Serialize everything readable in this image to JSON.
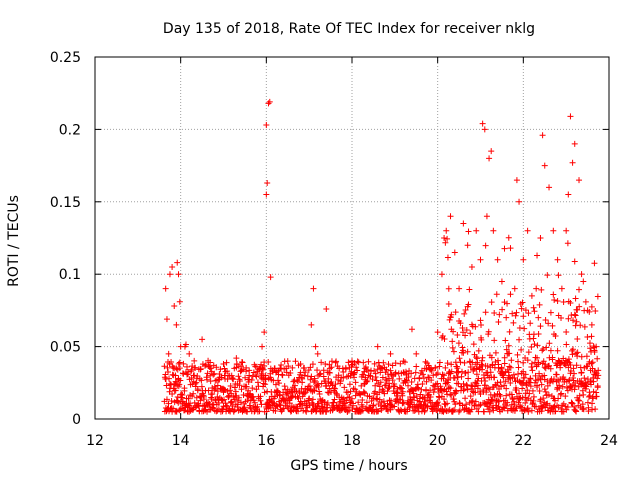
{
  "chart_data": {
    "type": "scatter",
    "title": "Day 135 of 2018, Rate Of TEC Index for receiver nklg",
    "xlabel": "GPS time / hours",
    "ylabel": "ROTI / TECUs",
    "xlim": [
      12,
      24
    ],
    "ylim": [
      0,
      0.25
    ],
    "xticks": [
      "12",
      "14",
      "16",
      "18",
      "20",
      "22",
      "24"
    ],
    "yticks": [
      "0",
      "0.05",
      "0.1",
      "0.15",
      "0.2",
      "0.25"
    ],
    "grid": true,
    "marker": "+",
    "color": "#ff0000",
    "series": [
      {
        "name": "ROTI",
        "x": [
          13.65,
          13.68,
          13.72,
          13.75,
          13.8,
          13.85,
          13.9,
          13.92,
          13.95,
          13.98,
          14.0,
          13.9,
          13.88,
          13.95,
          14.1,
          14.2,
          14.3,
          14.5,
          14.7,
          15.0,
          15.3,
          15.6,
          15.9,
          15.95,
          16.0,
          16.02,
          16.05,
          16.08,
          16.0,
          16.1,
          16.2,
          16.5,
          16.8,
          17.05,
          17.1,
          17.15,
          17.2,
          17.4,
          17.7,
          18.0,
          18.3,
          18.6,
          18.9,
          19.2,
          19.4,
          19.5,
          19.7,
          20.0,
          20.1,
          20.15,
          20.2,
          20.3,
          20.4,
          20.5,
          20.6,
          20.7,
          20.8,
          20.9,
          21.0,
          21.05,
          21.1,
          21.15,
          21.2,
          21.25,
          21.3,
          21.4,
          21.5,
          21.6,
          21.7,
          21.8,
          21.85,
          21.9,
          22.0,
          22.1,
          22.2,
          22.3,
          22.35,
          22.4,
          22.45,
          22.5,
          22.6,
          22.7,
          22.8,
          22.9,
          23.0,
          23.05,
          23.1,
          23.15,
          23.2,
          23.3,
          23.4,
          23.5,
          23.6,
          23.7
        ],
        "y": [
          0.09,
          0.069,
          0.045,
          0.1,
          0.105,
          0.078,
          0.065,
          0.108,
          0.1,
          0.081,
          0.05,
          0.035,
          0.03,
          0.028,
          0.05,
          0.045,
          0.03,
          0.055,
          0.035,
          0.038,
          0.042,
          0.03,
          0.05,
          0.06,
          0.155,
          0.163,
          0.218,
          0.219,
          0.203,
          0.098,
          0.035,
          0.04,
          0.032,
          0.065,
          0.09,
          0.05,
          0.045,
          0.076,
          0.035,
          0.04,
          0.035,
          0.05,
          0.045,
          0.04,
          0.062,
          0.045,
          0.035,
          0.06,
          0.1,
          0.125,
          0.13,
          0.14,
          0.115,
          0.09,
          0.135,
          0.12,
          0.105,
          0.13,
          0.11,
          0.204,
          0.2,
          0.14,
          0.18,
          0.185,
          0.13,
          0.11,
          0.095,
          0.07,
          0.118,
          0.09,
          0.165,
          0.15,
          0.11,
          0.13,
          0.085,
          0.09,
          0.07,
          0.125,
          0.196,
          0.175,
          0.16,
          0.13,
          0.11,
          0.09,
          0.13,
          0.155,
          0.209,
          0.177,
          0.19,
          0.165,
          0.095,
          0.075,
          0.065,
          0.05
        ],
        "baseline_band": [
          0.005,
          0.04
        ]
      }
    ]
  }
}
